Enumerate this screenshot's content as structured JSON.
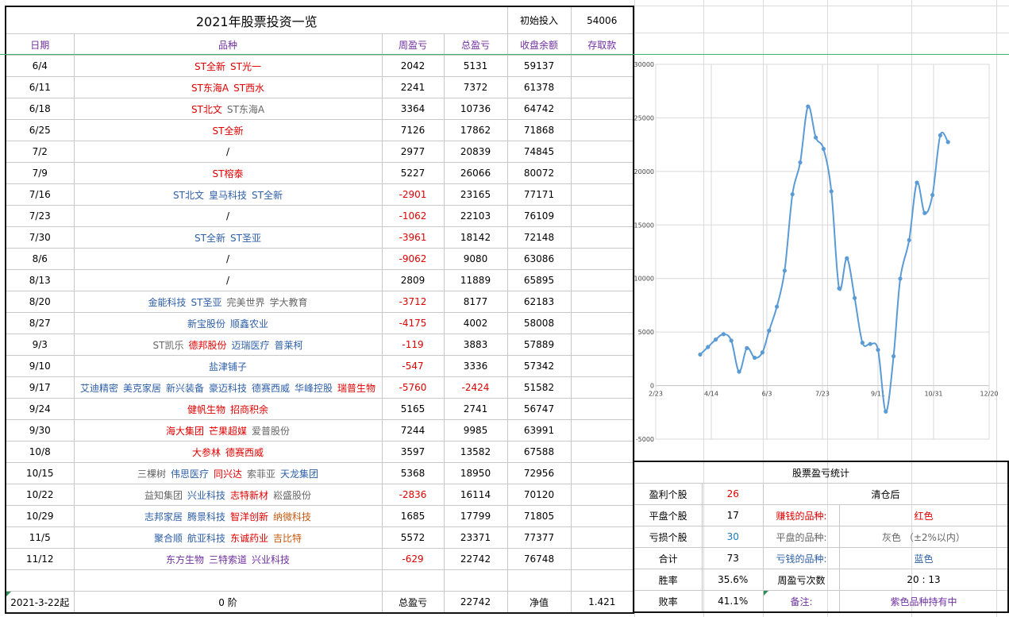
{
  "title": "2021年股票投资一览",
  "initial": {
    "label": "初始投入",
    "value": "54006"
  },
  "headers": {
    "date": "日期",
    "stocks": "品种",
    "week": "周盈亏",
    "total": "总盈亏",
    "balance": "收盘余额",
    "deposit": "存取款"
  },
  "rows": [
    {
      "date": "6/4",
      "stocks": [
        {
          "name": "ST全新",
          "color": "red"
        },
        {
          "name": "ST光一",
          "color": "red"
        }
      ],
      "week": "2042",
      "total": "5131",
      "balance": "59137",
      "deposit": ""
    },
    {
      "date": "6/11",
      "stocks": [
        {
          "name": "ST东海A",
          "color": "red"
        },
        {
          "name": "ST西水",
          "color": "red"
        }
      ],
      "week": "2241",
      "total": "7372",
      "balance": "61378",
      "deposit": ""
    },
    {
      "date": "6/18",
      "stocks": [
        {
          "name": "ST北文",
          "color": "red"
        },
        {
          "name": "ST东海A",
          "color": "gray"
        }
      ],
      "week": "3364",
      "total": "10736",
      "balance": "64742",
      "deposit": ""
    },
    {
      "date": "6/25",
      "stocks": [
        {
          "name": "ST全新",
          "color": "red"
        }
      ],
      "week": "7126",
      "total": "17862",
      "balance": "71868",
      "deposit": ""
    },
    {
      "date": "7/2",
      "stocks": [
        {
          "name": "/",
          "color": "black"
        }
      ],
      "week": "2977",
      "total": "20839",
      "balance": "74845",
      "deposit": ""
    },
    {
      "date": "7/9",
      "stocks": [
        {
          "name": "ST榕泰",
          "color": "red"
        }
      ],
      "week": "5227",
      "total": "26066",
      "balance": "80072",
      "deposit": ""
    },
    {
      "date": "7/16",
      "stocks": [
        {
          "name": "ST北文",
          "color": "blue"
        },
        {
          "name": "皇马科技",
          "color": "blue"
        },
        {
          "name": "ST全新",
          "color": "blue"
        }
      ],
      "week": "-2901",
      "total": "23165",
      "balance": "77171",
      "deposit": ""
    },
    {
      "date": "7/23",
      "stocks": [
        {
          "name": "/",
          "color": "black"
        }
      ],
      "week": "-1062",
      "total": "22103",
      "balance": "76109",
      "deposit": ""
    },
    {
      "date": "7/30",
      "stocks": [
        {
          "name": "ST全新",
          "color": "blue"
        },
        {
          "name": "ST圣亚",
          "color": "blue"
        }
      ],
      "week": "-3961",
      "total": "18142",
      "balance": "72148",
      "deposit": ""
    },
    {
      "date": "8/6",
      "stocks": [
        {
          "name": "/",
          "color": "black"
        }
      ],
      "week": "-9062",
      "total": "9080",
      "balance": "63086",
      "deposit": ""
    },
    {
      "date": "8/13",
      "stocks": [
        {
          "name": "/",
          "color": "black"
        }
      ],
      "week": "2809",
      "total": "11889",
      "balance": "65895",
      "deposit": ""
    },
    {
      "date": "8/20",
      "stocks": [
        {
          "name": "金能科技",
          "color": "blue"
        },
        {
          "name": "ST圣亚",
          "color": "blue"
        },
        {
          "name": "完美世界",
          "color": "gray"
        },
        {
          "name": "学大教育",
          "color": "gray"
        }
      ],
      "week": "-3712",
      "total": "8177",
      "balance": "62183",
      "deposit": ""
    },
    {
      "date": "8/27",
      "stocks": [
        {
          "name": "新宝股份",
          "color": "blue"
        },
        {
          "name": "顺鑫农业",
          "color": "blue"
        }
      ],
      "week": "-4175",
      "total": "4002",
      "balance": "58008",
      "deposit": ""
    },
    {
      "date": "9/3",
      "stocks": [
        {
          "name": "ST凯乐",
          "color": "gray"
        },
        {
          "name": "德邦股份",
          "color": "red"
        },
        {
          "name": "迈瑞医疗",
          "color": "blue"
        },
        {
          "name": "普莱柯",
          "color": "blue"
        }
      ],
      "week": "-119",
      "total": "3883",
      "balance": "57889",
      "deposit": ""
    },
    {
      "date": "9/10",
      "stocks": [
        {
          "name": "盐津铺子",
          "color": "blue"
        }
      ],
      "week": "-547",
      "total": "3336",
      "balance": "57342",
      "deposit": ""
    },
    {
      "date": "9/17",
      "stocks": [
        {
          "name": "艾迪精密",
          "color": "blue"
        },
        {
          "name": "美克家居",
          "color": "blue"
        },
        {
          "name": "新兴装备",
          "color": "blue"
        },
        {
          "name": "豪迈科技",
          "color": "blue"
        },
        {
          "name": "德赛西威",
          "color": "blue"
        },
        {
          "name": "华峰控股",
          "color": "blue"
        },
        {
          "name": "瑞普生物",
          "color": "red"
        }
      ],
      "week": "-5760",
      "total": "-2424",
      "balance": "51582",
      "deposit": ""
    },
    {
      "date": "9/24",
      "stocks": [
        {
          "name": "健帆生物",
          "color": "red"
        },
        {
          "name": "招商积余",
          "color": "red"
        }
      ],
      "week": "5165",
      "total": "2741",
      "balance": "56747",
      "deposit": ""
    },
    {
      "date": "9/30",
      "stocks": [
        {
          "name": "海大集团",
          "color": "red"
        },
        {
          "name": "芒果超媒",
          "color": "red"
        },
        {
          "name": "爱普股份",
          "color": "gray"
        }
      ],
      "week": "7244",
      "total": "9985",
      "balance": "63991",
      "deposit": ""
    },
    {
      "date": "10/8",
      "stocks": [
        {
          "name": "大参林",
          "color": "red"
        },
        {
          "name": "德赛西威",
          "color": "red"
        }
      ],
      "week": "3597",
      "total": "13582",
      "balance": "67588",
      "deposit": ""
    },
    {
      "date": "10/15",
      "stocks": [
        {
          "name": "三棵树",
          "color": "gray"
        },
        {
          "name": "伟思医疗",
          "color": "blue"
        },
        {
          "name": "同兴达",
          "color": "red"
        },
        {
          "name": "索菲亚",
          "color": "gray"
        },
        {
          "name": "天龙集团",
          "color": "blue"
        }
      ],
      "week": "5368",
      "total": "18950",
      "balance": "72956",
      "deposit": ""
    },
    {
      "date": "10/22",
      "stocks": [
        {
          "name": "益知集团",
          "color": "gray"
        },
        {
          "name": "兴业科技",
          "color": "blue"
        },
        {
          "name": "志特新材",
          "color": "red"
        },
        {
          "name": "崧盛股份",
          "color": "gray"
        }
      ],
      "week": "-2836",
      "total": "16114",
      "balance": "70120",
      "deposit": ""
    },
    {
      "date": "10/29",
      "stocks": [
        {
          "name": "志邦家居",
          "color": "blue"
        },
        {
          "name": "腾景科技",
          "color": "blue"
        },
        {
          "name": "智洋创新",
          "color": "red"
        },
        {
          "name": "纳微科技",
          "color": "orange"
        }
      ],
      "week": "1685",
      "total": "17799",
      "balance": "71805",
      "deposit": ""
    },
    {
      "date": "11/5",
      "stocks": [
        {
          "name": "聚合顺",
          "color": "blue"
        },
        {
          "name": "航亚科技",
          "color": "blue"
        },
        {
          "name": "东诚药业",
          "color": "red"
        },
        {
          "name": "吉比特",
          "color": "orange"
        }
      ],
      "week": "5572",
      "total": "23371",
      "balance": "77377",
      "deposit": ""
    },
    {
      "date": "11/12",
      "stocks": [
        {
          "name": "东方生物",
          "color": "purple"
        },
        {
          "name": "三特索道",
          "color": "purple"
        },
        {
          "name": "兴业科技",
          "color": "purple"
        }
      ],
      "week": "-629",
      "total": "22742",
      "balance": "76748",
      "deposit": ""
    }
  ],
  "footer": {
    "start": "2021-3-22起",
    "stage": "0 阶",
    "total_label": "总盈亏",
    "total_value": "22742",
    "net_label": "净值",
    "net_value": "1.421"
  },
  "chart_data": {
    "type": "line",
    "x": [
      "4/3",
      "4/10",
      "4/17",
      "4/24",
      "5/1",
      "5/8",
      "5/15",
      "5/22",
      "5/29",
      "6/4",
      "6/11",
      "6/18",
      "6/25",
      "7/2",
      "7/9",
      "7/16",
      "7/23",
      "7/30",
      "8/6",
      "8/13",
      "8/20",
      "8/27",
      "9/3",
      "9/10",
      "9/17",
      "9/24",
      "9/30",
      "10/8",
      "10/15",
      "10/22",
      "10/29",
      "11/5",
      "11/12"
    ],
    "x_days": [
      40,
      47,
      54,
      61,
      68,
      75,
      82,
      89,
      96,
      102,
      109,
      116,
      123,
      130,
      137,
      144,
      151,
      158,
      165,
      172,
      179,
      186,
      193,
      200,
      207,
      214,
      220,
      228,
      235,
      242,
      249,
      256,
      263
    ],
    "values": [
      2900,
      3600,
      4300,
      4800,
      4200,
      1300,
      3500,
      2600,
      3100,
      5131,
      7372,
      10736,
      17862,
      20839,
      26066,
      23165,
      22103,
      18142,
      9080,
      11889,
      8177,
      4002,
      3883,
      3336,
      -2424,
      2741,
      9985,
      13582,
      18950,
      16114,
      17799,
      23371,
      22742
    ],
    "ylim": [
      -5000,
      30000
    ],
    "yticks": [
      "-5000",
      "0",
      "5000",
      "10000",
      "15000",
      "20000",
      "25000",
      "30000"
    ],
    "xticks": [
      "2/23",
      "4/14",
      "6/3",
      "7/23",
      "9/11",
      "10/31",
      "12/20"
    ],
    "xticks_days": [
      0,
      50,
      100,
      150,
      200,
      250,
      300
    ],
    "grid": true,
    "color": "#5b9bd5"
  },
  "stats": {
    "title": "股票盈亏统计",
    "rows": [
      {
        "label": "盈利个股",
        "value": "26"
      },
      {
        "label": "平盘个股",
        "value": "17"
      },
      {
        "label": "亏损个股",
        "value": "30"
      },
      {
        "label": "合计",
        "value": "73"
      },
      {
        "label": "胜率",
        "value": "35.6%"
      },
      {
        "label": "败率",
        "value": "41.1%"
      }
    ],
    "clear_label": "清仓后",
    "legend": [
      {
        "label": "赚钱的品种:",
        "value": "红色"
      },
      {
        "label": "平盘的品种:",
        "value": "灰色 （±2%以内）"
      },
      {
        "label": "亏钱的品种:",
        "value": "蓝色"
      }
    ],
    "count_label": "周盈亏次数",
    "count_value": "20 : 13",
    "note_label": "备注:",
    "note_value": "紫色品种持有中"
  }
}
